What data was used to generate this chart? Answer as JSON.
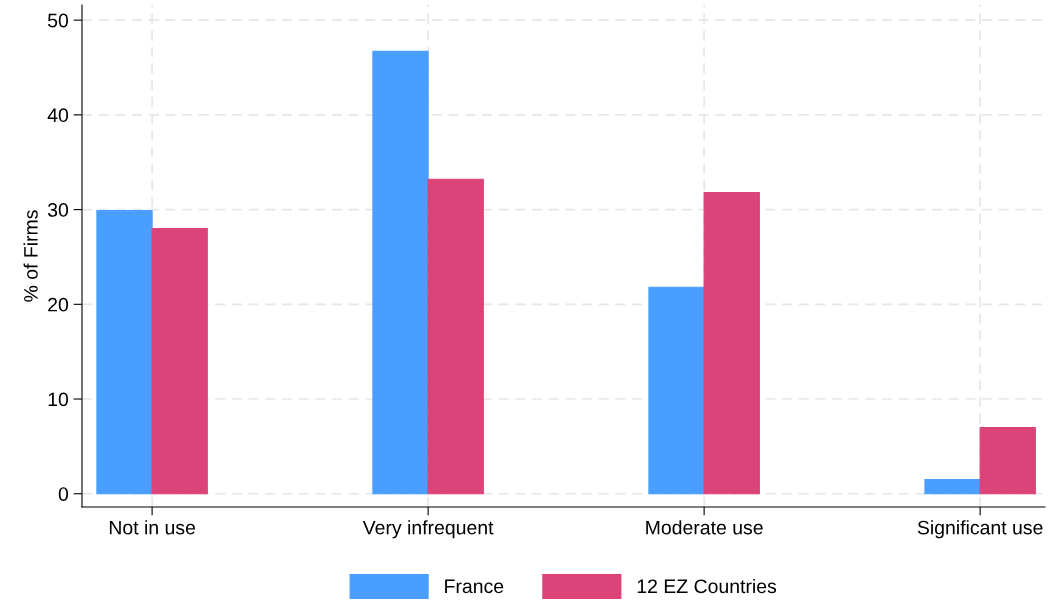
{
  "chart_data": {
    "type": "bar",
    "ylabel": "% of Firms",
    "categories": [
      "Not in use",
      "Very infrequent",
      "Moderate use",
      "Significant use"
    ],
    "series": [
      {
        "name": "France",
        "color": "#4a9eff",
        "values": [
          29.9,
          46.7,
          21.8,
          1.5
        ]
      },
      {
        "name": "12 EZ Countries",
        "color": "#dc4379",
        "values": [
          28.0,
          33.2,
          31.8,
          7.0
        ]
      }
    ],
    "ylim": [
      -1.4,
      51.6
    ],
    "yticks": [
      0,
      10,
      20,
      30,
      40,
      50
    ],
    "grid": true,
    "legend": "bottom"
  }
}
